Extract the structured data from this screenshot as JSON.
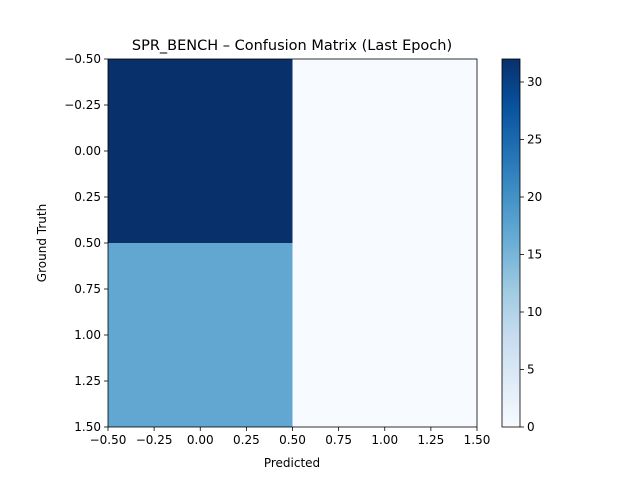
{
  "chart_data": {
    "type": "heatmap",
    "title": "SPR_BENCH – Confusion Matrix (Last Epoch)",
    "xlabel": "Predicted",
    "ylabel": "Ground Truth",
    "matrix": [
      [
        32,
        0
      ],
      [
        17,
        0
      ]
    ],
    "xlim": [
      -0.5,
      1.5
    ],
    "ylim": [
      1.5,
      -0.5
    ],
    "x_ticks": [
      "−0.50",
      "−0.25",
      "0.00",
      "0.25",
      "0.50",
      "0.75",
      "1.00",
      "1.25",
      "1.50"
    ],
    "y_ticks": [
      "−0.50",
      "−0.25",
      "0.00",
      "0.25",
      "0.50",
      "0.75",
      "1.00",
      "1.25",
      "1.50"
    ],
    "colorbar": {
      "colormap": "Blues",
      "range": [
        0,
        32
      ],
      "ticks": [
        "0",
        "5",
        "10",
        "15",
        "20",
        "25",
        "30"
      ]
    },
    "grid": false
  }
}
